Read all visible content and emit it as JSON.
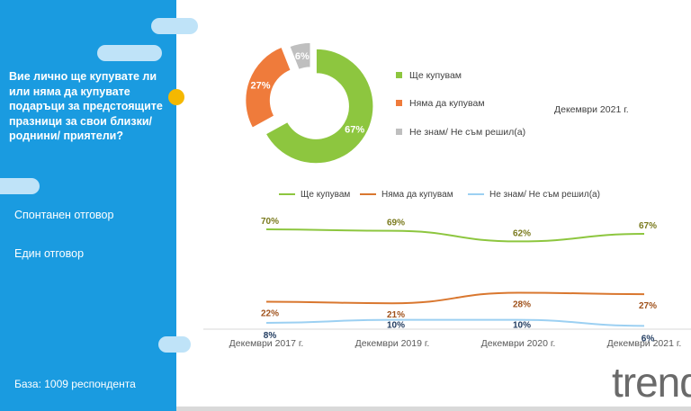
{
  "sidebar": {
    "question": "Вие лично ще купувате ли или няма да купувате подаръци за предстоящите празници за свои близки/ роднини/ приятели?",
    "answer_type_1": "Спонтанен отговор",
    "answer_type_2": "Един отговор",
    "base": "База:  1009 респондента",
    "colors": {
      "background": "#1a9be0",
      "pill": "#bfe3f8",
      "dot": "#f5b800"
    }
  },
  "logo": {
    "text": "trend"
  },
  "chart_data": [
    {
      "type": "pie",
      "subtitle": "Декември 2021 г.",
      "categories": [
        "Ще купувам",
        "Няма да купувам",
        "Не знам/ Не съм решил(а)"
      ],
      "values": [
        67,
        27,
        6
      ],
      "labels": [
        "67%",
        "27%",
        "6%"
      ],
      "colors": [
        "#8dc63f",
        "#ef7b3b",
        "#bfbfbf"
      ],
      "legend_position": "right"
    },
    {
      "type": "line",
      "categories": [
        "Декември 2017 г.",
        "Декември 2019 г.",
        "Декември 2020 г.",
        "Декември 2021 г."
      ],
      "series": [
        {
          "name": "Ще купувам",
          "values": [
            70,
            69,
            62,
            67
          ],
          "labels": [
            "70%",
            "69%",
            "62%",
            "67%"
          ],
          "color": "#8dc63f",
          "label_color": "#7a7a1e"
        },
        {
          "name": "Няма да купувам",
          "values": [
            22,
            21,
            28,
            27
          ],
          "labels": [
            "22%",
            "21%",
            "28%",
            "27%"
          ],
          "color": "#d9772f",
          "label_color": "#a0521c"
        },
        {
          "name": "Не знам/ Не съм решил(а)",
          "values": [
            8,
            10,
            10,
            6
          ],
          "labels": [
            "8%",
            "10%",
            "10%",
            "6%"
          ],
          "color": "#9cd0f2",
          "label_color": "#1f3a5f"
        }
      ],
      "legend_position": "top",
      "grid": false
    }
  ]
}
